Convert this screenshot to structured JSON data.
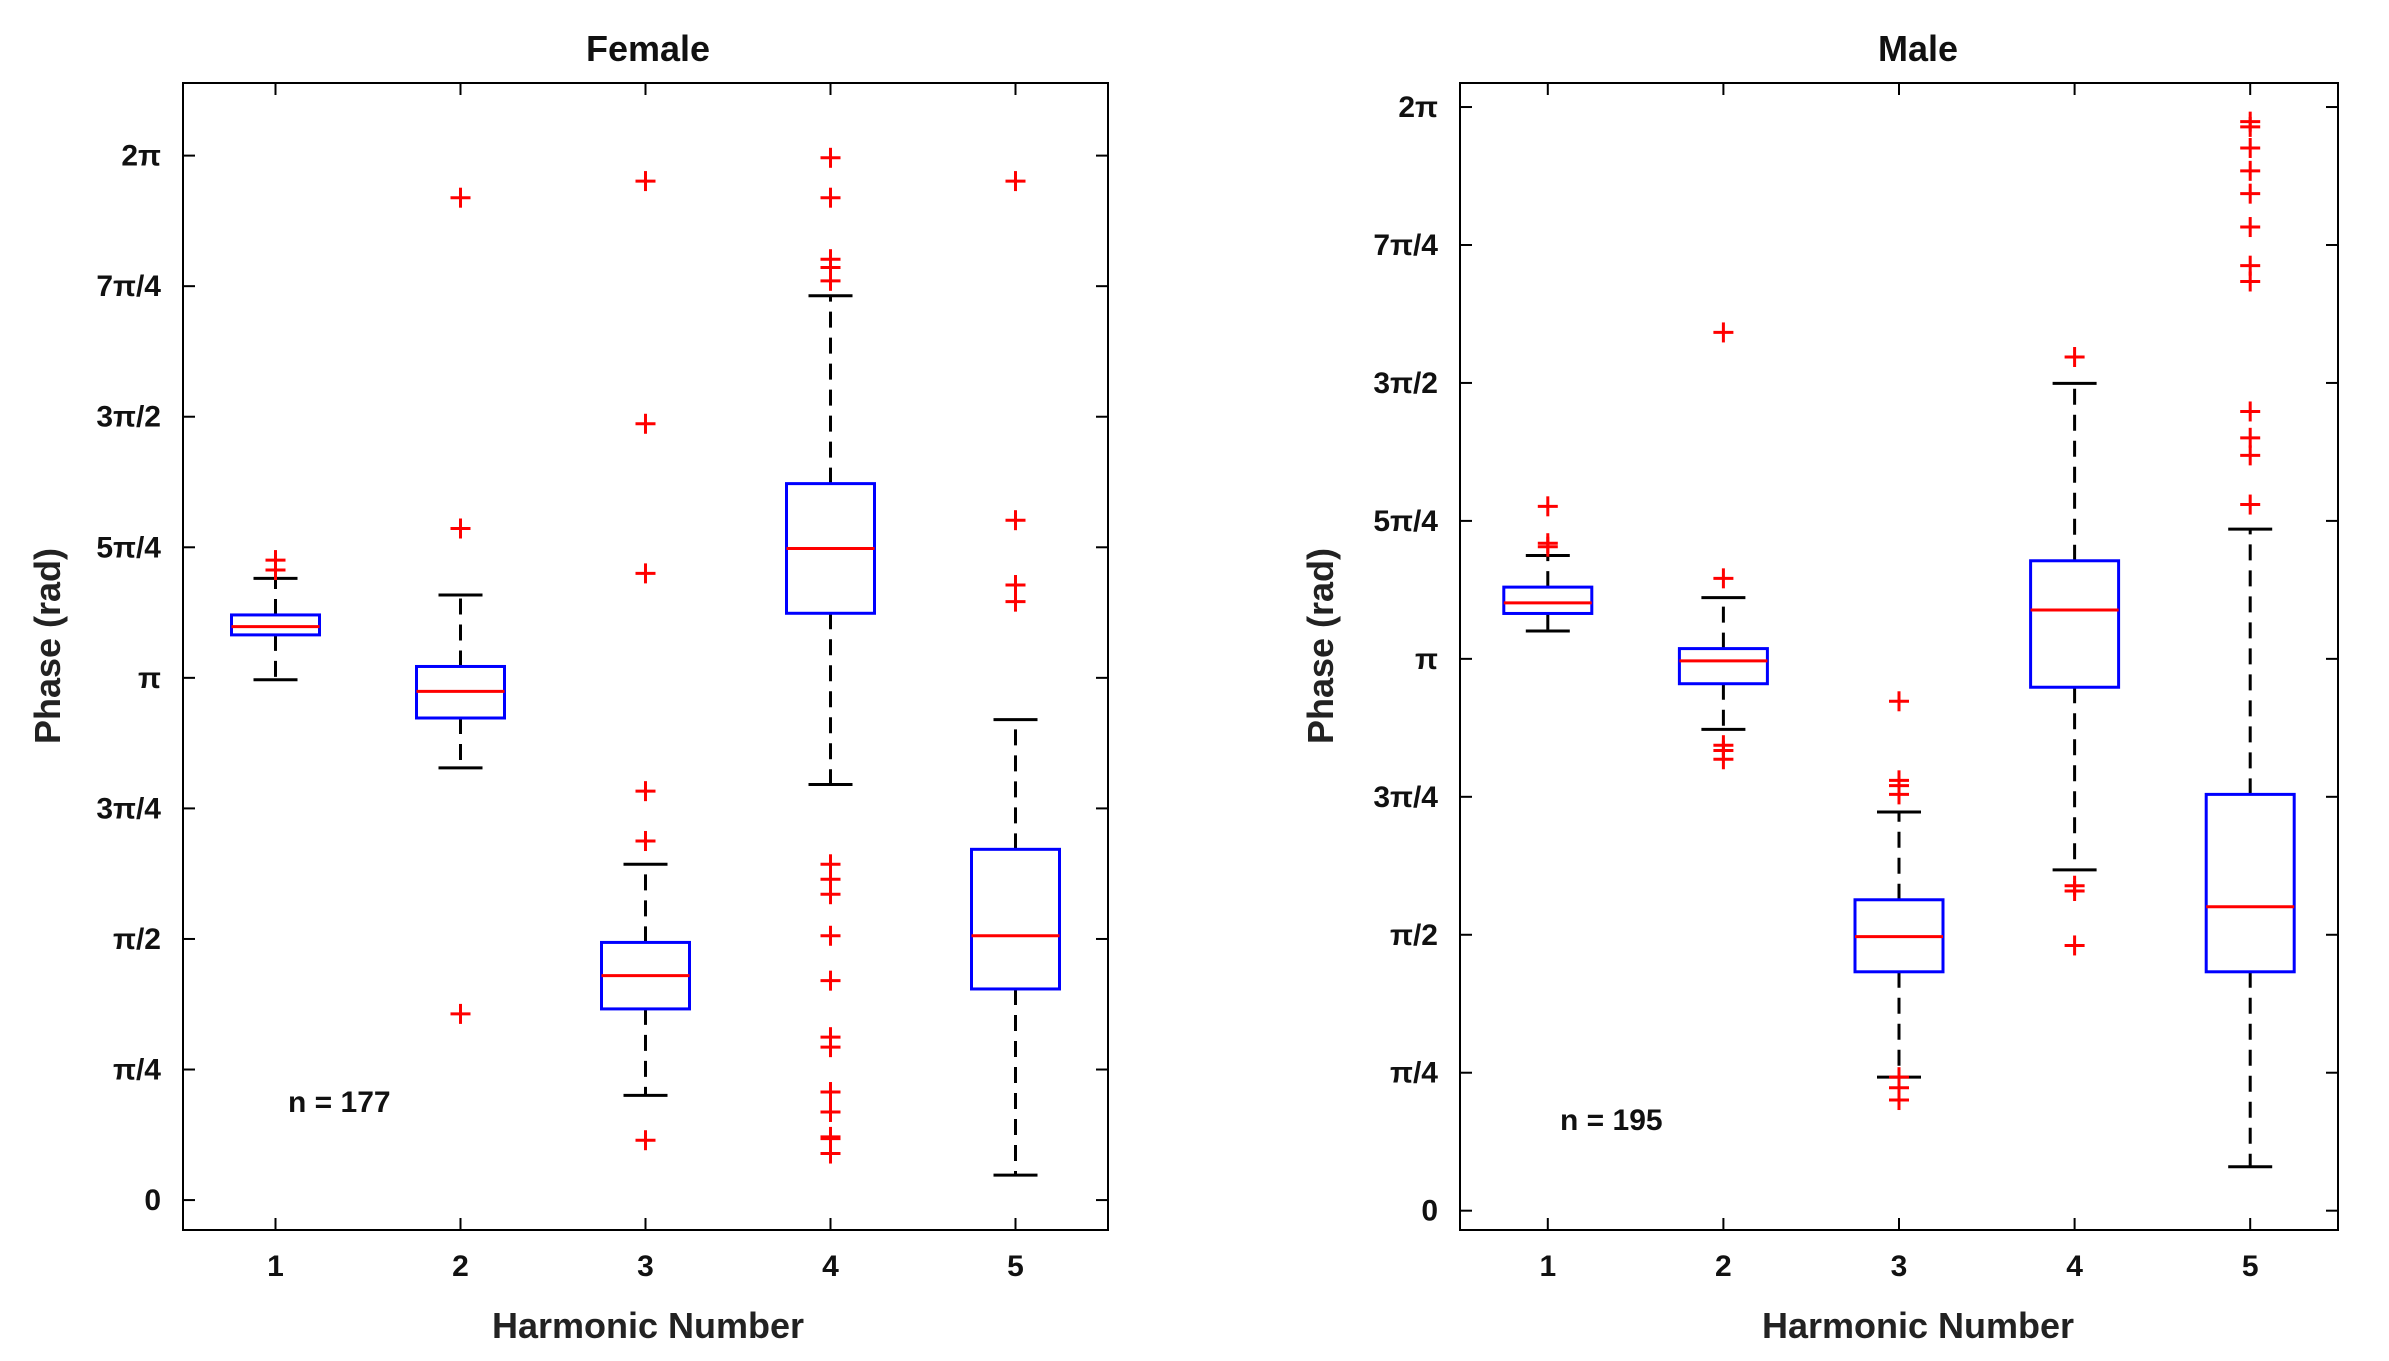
{
  "chart_data": [
    {
      "type": "box",
      "title": "Female",
      "xlabel": "Harmonic Number",
      "ylabel": "Phase (rad)",
      "categories": [
        "1",
        "2",
        "3",
        "4",
        "5"
      ],
      "ylim": [
        -0.18,
        6.72
      ],
      "yticks": [
        {
          "value": 0,
          "label": "0"
        },
        {
          "value": 0.7854,
          "label": "π/4"
        },
        {
          "value": 1.5708,
          "label": "π/2"
        },
        {
          "value": 2.3562,
          "label": "3π/4"
        },
        {
          "value": 3.1416,
          "label": "π"
        },
        {
          "value": 3.927,
          "label": "5π/4"
        },
        {
          "value": 4.7124,
          "label": "3π/2"
        },
        {
          "value": 5.4978,
          "label": "7π/4"
        },
        {
          "value": 6.2832,
          "label": "2π"
        }
      ],
      "annotation": "n = 177",
      "boxes": [
        {
          "category": "1",
          "whisker_low": 3.13,
          "q1": 3.4,
          "median": 3.45,
          "q3": 3.52,
          "whisker_high": 3.74,
          "outliers": [
            3.79,
            3.85
          ]
        },
        {
          "category": "2",
          "whisker_low": 2.6,
          "q1": 2.9,
          "median": 3.06,
          "q3": 3.21,
          "whisker_high": 3.64,
          "outliers": [
            1.12,
            4.04,
            6.03
          ]
        },
        {
          "category": "3",
          "whisker_low": 0.63,
          "q1": 1.15,
          "median": 1.35,
          "q3": 1.55,
          "whisker_high": 2.02,
          "outliers": [
            0.36,
            2.16,
            2.46,
            3.77,
            4.67,
            6.13
          ]
        },
        {
          "category": "4",
          "whisker_low": 2.5,
          "q1": 3.53,
          "median": 3.92,
          "q3": 4.31,
          "whisker_high": 5.44,
          "outliers": [
            0.28,
            0.37,
            0.38,
            0.53,
            0.65,
            0.92,
            0.98,
            1.32,
            1.59,
            1.84,
            1.93,
            2.02,
            5.53,
            5.61,
            5.66,
            6.03,
            6.27
          ]
        },
        {
          "category": "5",
          "whisker_low": 0.15,
          "q1": 1.27,
          "median": 1.59,
          "q3": 2.11,
          "whisker_high": 2.89,
          "outliers": [
            3.6,
            3.7,
            4.09,
            6.13
          ]
        }
      ]
    },
    {
      "type": "box",
      "title": "Male",
      "xlabel": "Harmonic Number",
      "ylabel": "Phase (rad)",
      "categories": [
        "1",
        "2",
        "3",
        "4",
        "5"
      ],
      "ylim": [
        -0.11,
        6.42
      ],
      "yticks": [
        {
          "value": 0,
          "label": "0"
        },
        {
          "value": 0.7854,
          "label": "π/4"
        },
        {
          "value": 1.5708,
          "label": "π/2"
        },
        {
          "value": 2.3562,
          "label": "3π/4"
        },
        {
          "value": 3.1416,
          "label": "π"
        },
        {
          "value": 3.927,
          "label": "5π/4"
        },
        {
          "value": 4.7124,
          "label": "3π/2"
        },
        {
          "value": 5.4978,
          "label": "7π/4"
        },
        {
          "value": 6.2832,
          "label": "2π"
        }
      ],
      "annotation": "n = 195",
      "boxes": [
        {
          "category": "1",
          "whisker_low": 3.3,
          "q1": 3.4,
          "median": 3.46,
          "q3": 3.55,
          "whisker_high": 3.73,
          "outliers": [
            3.78,
            3.8,
            4.01
          ]
        },
        {
          "category": "2",
          "whisker_low": 2.74,
          "q1": 3.0,
          "median": 3.13,
          "q3": 3.2,
          "whisker_high": 3.49,
          "outliers": [
            2.57,
            2.62,
            2.65,
            3.6,
            5.0
          ]
        },
        {
          "category": "3",
          "whisker_low": 0.76,
          "q1": 1.36,
          "median": 1.56,
          "q3": 1.77,
          "whisker_high": 2.27,
          "outliers": [
            0.63,
            0.7,
            0.76,
            2.37,
            2.42,
            2.45,
            2.9
          ]
        },
        {
          "category": "4",
          "whisker_low": 1.94,
          "q1": 2.98,
          "median": 3.42,
          "q3": 3.7,
          "whisker_high": 4.71,
          "outliers": [
            1.51,
            1.82,
            1.85,
            4.86
          ]
        },
        {
          "category": "5",
          "whisker_low": 0.25,
          "q1": 1.36,
          "median": 1.73,
          "q3": 2.37,
          "whisker_high": 3.88,
          "outliers": [
            4.02,
            4.3,
            4.4,
            4.55,
            5.29,
            5.38,
            5.6,
            5.79,
            5.92,
            6.05,
            6.17,
            6.2
          ]
        }
      ]
    }
  ],
  "colors": {
    "box": "#0000ff",
    "median": "#ff0000",
    "outlier": "#ff0000",
    "whisker": "#000000",
    "axes": "#000000"
  }
}
